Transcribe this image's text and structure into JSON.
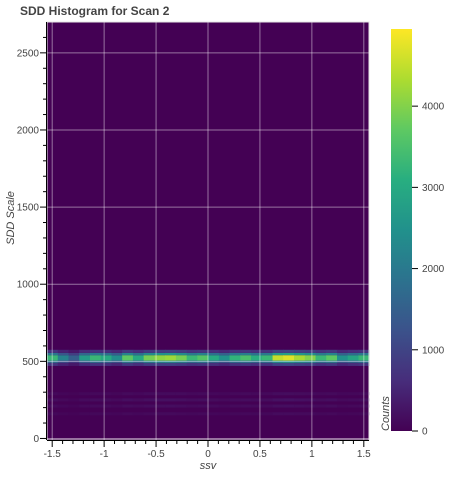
{
  "chart_data": {
    "type": "heatmap",
    "title": "SDD Histogram for Scan 2",
    "xlabel": "ssv",
    "ylabel": "SDD Scale",
    "xlim": [
      -1.55,
      1.55
    ],
    "ylim": [
      -10,
      2700
    ],
    "x_ticks": [
      -1.5,
      -1,
      -0.5,
      0,
      0.5,
      1,
      1.5
    ],
    "x_tick_labels": [
      "-1.5",
      "-1",
      "-0.5",
      "0",
      "0.5",
      "1",
      "1.5"
    ],
    "y_ticks": [
      0,
      500,
      1000,
      1500,
      2000,
      2500
    ],
    "y_tick_labels": [
      "0",
      "500",
      "1000",
      "1500",
      "2000",
      "2500"
    ],
    "grid": true,
    "colormap": "viridis",
    "colorbar": {
      "label": "Counts",
      "range": [
        0,
        4950
      ],
      "ticks": [
        0,
        1000,
        2000,
        3000,
        4000
      ],
      "tick_labels": [
        "0",
        "1000",
        "2000",
        "3000",
        "4000"
      ]
    },
    "x_bins": 30,
    "x_bin_width": 0.1034,
    "y_bins": [
      {
        "y0": 470,
        "y1": 490,
        "scale": 0.22
      },
      {
        "y0": 490,
        "y1": 505,
        "scale": 0.55
      },
      {
        "y0": 505,
        "y1": 540,
        "scale": 1.0
      },
      {
        "y0": 540,
        "y1": 555,
        "scale": 0.6
      },
      {
        "y0": 555,
        "y1": 575,
        "scale": 0.22
      },
      {
        "y0": 280,
        "y1": 300,
        "scale": 0.035
      },
      {
        "y0": 240,
        "y1": 260,
        "scale": 0.05
      },
      {
        "y0": 200,
        "y1": 220,
        "scale": 0.04
      },
      {
        "y0": 150,
        "y1": 170,
        "scale": 0.03
      }
    ],
    "peak_band_counts": [
      3300,
      2200,
      1500,
      2700,
      3300,
      3000,
      2400,
      3700,
      3000,
      3900,
      4100,
      4200,
      3900,
      3300,
      3600,
      3000,
      2500,
      3200,
      3500,
      3100,
      3300,
      4500,
      4700,
      4300,
      4000,
      3300,
      3700,
      2500,
      2900,
      3300
    ],
    "background_count": 30
  }
}
